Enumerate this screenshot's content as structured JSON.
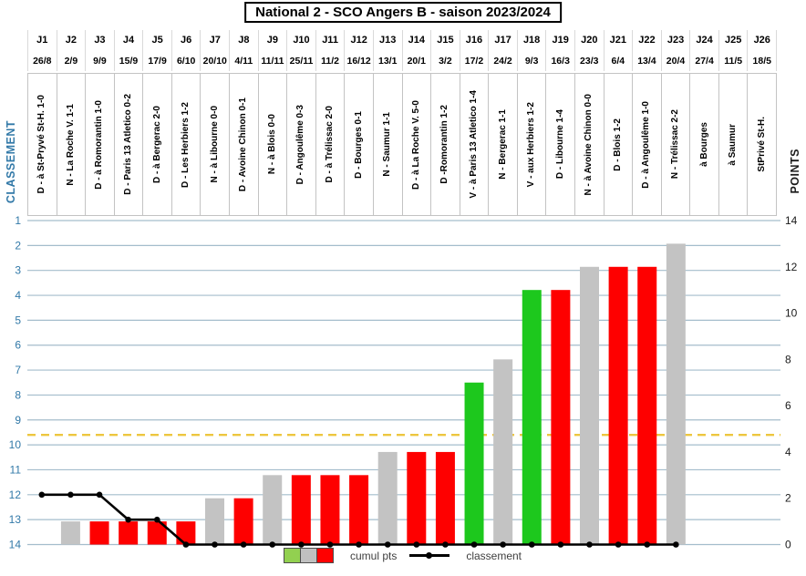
{
  "title": "National 2 - SCO Angers B - saison 2023/2024",
  "left_axis": {
    "label": "CLASSEMENT",
    "color": "#3279a8",
    "ticks": [
      1,
      2,
      3,
      4,
      5,
      6,
      7,
      8,
      9,
      10,
      11,
      12,
      13,
      14
    ]
  },
  "right_axis": {
    "label": "POINTS",
    "color": "#1a1a1a",
    "ticks": [
      14,
      12,
      10,
      8,
      6,
      4,
      2,
      0
    ]
  },
  "legend": {
    "bars_label": "cumul pts",
    "line_label": "classement",
    "swatch_colors": [
      "#92d050",
      "#c0c0c0",
      "#ff0000"
    ]
  },
  "colors": {
    "bar_win": "#1dc81d",
    "bar_draw": "#c3c3c3",
    "bar_loss": "#fe0000",
    "line": "#000000",
    "gridline": "#a4bdcc",
    "threshold": "#edc63f"
  },
  "matchdays": [
    {
      "j": "J1",
      "date": "26/8",
      "label": "D - à St-Pryvé St-H. 1-0",
      "result": "D"
    },
    {
      "j": "J2",
      "date": "2/9",
      "label": "N - La Roche V. 1-1",
      "result": "N"
    },
    {
      "j": "J3",
      "date": "9/9",
      "label": "D - à Romorantin 1-0",
      "result": "D"
    },
    {
      "j": "J4",
      "date": "15/9",
      "label": "D - Paris 13 Atletico 0-2",
      "result": "D"
    },
    {
      "j": "J5",
      "date": "17/9",
      "label": "D - à Bergerac 2-0",
      "result": "D"
    },
    {
      "j": "J6",
      "date": "6/10",
      "label": "D - Les Herbiers 1-2",
      "result": "D"
    },
    {
      "j": "J7",
      "date": "20/10",
      "label": "N - à Libourne 0-0",
      "result": "N"
    },
    {
      "j": "J8",
      "date": "4/11",
      "label": "D - Avoine Chinon 0-1",
      "result": "D"
    },
    {
      "j": "J9",
      "date": "11/11",
      "label": "N - à Blois 0-0",
      "result": "N"
    },
    {
      "j": "J10",
      "date": "25/11",
      "label": "D - Angoulême 0-3",
      "result": "D"
    },
    {
      "j": "J11",
      "date": "11/2",
      "label": "D - à Trélissac 2-0",
      "result": "D"
    },
    {
      "j": "J12",
      "date": "16/12",
      "label": "D - Bourges 0-1",
      "result": "D"
    },
    {
      "j": "J13",
      "date": "13/1",
      "label": "N - Saumur 1-1",
      "result": "N"
    },
    {
      "j": "J14",
      "date": "20/1",
      "label": "D - à La Roche V. 5-0",
      "result": "D"
    },
    {
      "j": "J15",
      "date": "3/2",
      "label": "D -Romorantin 1-2",
      "result": "D"
    },
    {
      "j": "J16",
      "date": "17/2",
      "label": "V - à Paris 13 Atletico 1-4",
      "result": "V"
    },
    {
      "j": "J17",
      "date": "24/2",
      "label": "N - Bergerac 1-1",
      "result": "N"
    },
    {
      "j": "J18",
      "date": "9/3",
      "label": "V - aux Herbiers 1-2",
      "result": "V"
    },
    {
      "j": "J19",
      "date": "16/3",
      "label": "D - Libourne 1-4",
      "result": "D"
    },
    {
      "j": "J20",
      "date": "23/3",
      "label": "N - à Avoine Chinon 0-0",
      "result": "N"
    },
    {
      "j": "J21",
      "date": "6/4",
      "label": "D - Blois 1-2",
      "result": "D"
    },
    {
      "j": "J22",
      "date": "13/4",
      "label": "D - à Angoulême 1-0",
      "result": "D"
    },
    {
      "j": "J23",
      "date": "20/4",
      "label": "N - Trélissac 2-2",
      "result": "N"
    },
    {
      "j": "J24",
      "date": "27/4",
      "label": "à Bourges",
      "result": null
    },
    {
      "j": "J25",
      "date": "11/5",
      "label": "à Saumur",
      "result": null
    },
    {
      "j": "J26",
      "date": "18/5",
      "label": "StPrivé St-H.",
      "result": null
    }
  ],
  "chart_data": {
    "type": "bar+line",
    "title": "National 2 - SCO Angers B - saison 2023/2024",
    "categories": [
      "J1",
      "J2",
      "J3",
      "J4",
      "J5",
      "J6",
      "J7",
      "J8",
      "J9",
      "J10",
      "J11",
      "J12",
      "J13",
      "J14",
      "J15",
      "J16",
      "J17",
      "J18",
      "J19",
      "J20",
      "J21",
      "J22",
      "J23",
      "J24",
      "J25",
      "J26"
    ],
    "series": [
      {
        "name": "cumul pts",
        "type": "bar",
        "axis": "points",
        "values": [
          0,
          1,
          1,
          1,
          1,
          1,
          2,
          2,
          3,
          3,
          3,
          3,
          4,
          4,
          4,
          7,
          8,
          11,
          11,
          12,
          12,
          12,
          13,
          null,
          null,
          null
        ],
        "color_by_result": {
          "V": "bar_win",
          "N": "bar_draw",
          "D": "bar_loss"
        }
      },
      {
        "name": "classement",
        "type": "line",
        "axis": "classement",
        "values": [
          12,
          12,
          12,
          13,
          13,
          14,
          14,
          14,
          14,
          14,
          14,
          14,
          14,
          14,
          14,
          14,
          14,
          14,
          14,
          14,
          14,
          14,
          14,
          null,
          null,
          null
        ]
      }
    ],
    "points_axis_range": [
      0,
      14
    ],
    "classement_axis_range": [
      1,
      14
    ],
    "classement_axis_inverted": true,
    "gridlines": "one per classement rank 1-14",
    "threshold_line": {
      "axis": "classement",
      "value": 9.6,
      "style": "dashed"
    },
    "legend_position": "bottom"
  }
}
